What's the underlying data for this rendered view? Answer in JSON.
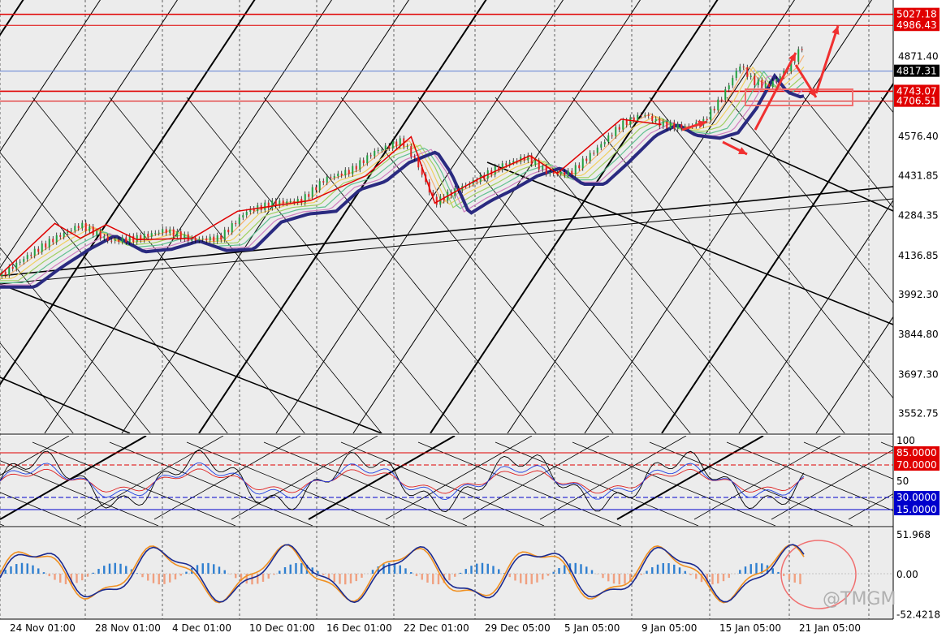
{
  "chart_data": {
    "type": "candlestick-with-indicators",
    "watermark": "@TMGM",
    "x_tick_labels": [
      "24 Nov 01:00",
      "28 Nov 01:00",
      "4 Dec 01:00",
      "10 Dec 01:00",
      "16 Dec 01:00",
      "22 Dec 01:00",
      "29 Dec 05:00",
      "5 Jan 05:00",
      "9 Jan 05:00",
      "15 Jan 05:00",
      "21 Jan 05:00"
    ],
    "price_panel": {
      "y_range": [
        3480,
        5080
      ],
      "axis_labels": [
        "4871.40",
        "4576.40",
        "4431.85",
        "4284.35",
        "4136.85",
        "3992.30",
        "3844.80",
        "3697.30",
        "3552.75"
      ],
      "axis_values": [
        4871.4,
        4576.4,
        4431.85,
        4284.35,
        4136.85,
        3992.3,
        3844.8,
        3697.3,
        3552.75
      ],
      "current_price": {
        "label": "4817.31",
        "value": 4817.31
      },
      "resistance_levels": [
        {
          "label": "5027.18",
          "value": 5027.18
        },
        {
          "label": "4986.43",
          "value": 4986.43
        },
        {
          "label": "4743.07",
          "value": 4743.07
        },
        {
          "label": "4706.51",
          "value": 4706.51
        }
      ],
      "trend_points": [
        [
          0,
          4060
        ],
        [
          14,
          4130
        ],
        [
          30,
          4200
        ],
        [
          44,
          4250
        ],
        [
          60,
          4190
        ],
        [
          75,
          4200
        ],
        [
          90,
          4230
        ],
        [
          105,
          4195
        ],
        [
          120,
          4200
        ],
        [
          135,
          4300
        ],
        [
          150,
          4330
        ],
        [
          165,
          4340
        ],
        [
          178,
          4420
        ],
        [
          192,
          4450
        ],
        [
          205,
          4520
        ],
        [
          220,
          4560
        ],
        [
          228,
          4480
        ],
        [
          238,
          4330
        ],
        [
          250,
          4380
        ],
        [
          262,
          4420
        ],
        [
          275,
          4470
        ],
        [
          288,
          4500
        ],
        [
          300,
          4440
        ],
        [
          312,
          4440
        ],
        [
          325,
          4520
        ],
        [
          340,
          4620
        ],
        [
          352,
          4660
        ],
        [
          362,
          4620
        ],
        [
          375,
          4610
        ],
        [
          385,
          4630
        ],
        [
          395,
          4720
        ],
        [
          405,
          4840
        ],
        [
          412,
          4780
        ],
        [
          420,
          4760
        ],
        [
          432,
          4830
        ],
        [
          440,
          4920
        ]
      ]
    },
    "rsi_panel": {
      "y_range": [
        0,
        100
      ],
      "axis_labels": [
        "100",
        "50"
      ],
      "levels": [
        {
          "label": "85.0000",
          "value": 85
        },
        {
          "label": "70.0000",
          "value": 70
        },
        {
          "label": "30.0000",
          "value": 30
        },
        {
          "label": "15.0000",
          "value": 15
        }
      ]
    },
    "macd_panel": {
      "y_range": [
        -55,
        55
      ],
      "axis_labels": [
        "51.968",
        "0.00",
        "-52.4218"
      ],
      "axis_values": [
        51.968,
        0.0,
        -52.4218
      ]
    }
  }
}
